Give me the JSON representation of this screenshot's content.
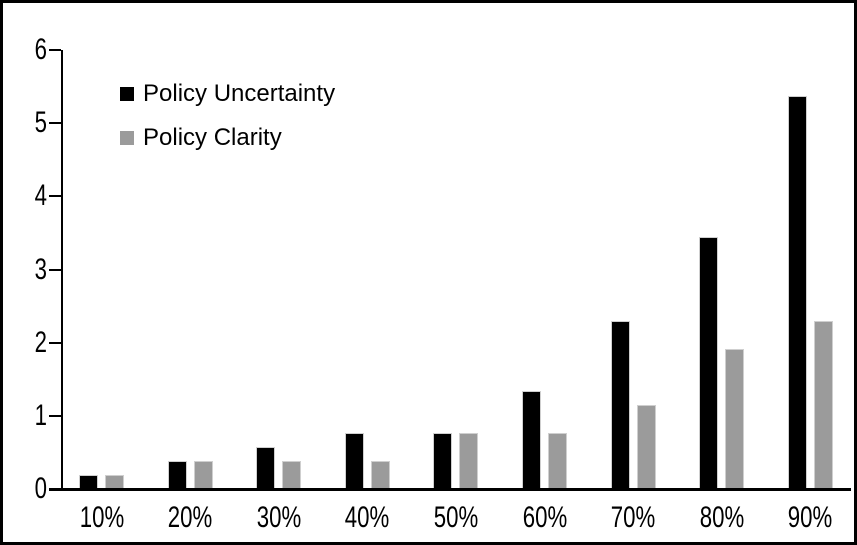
{
  "chart_data": {
    "type": "bar",
    "title": "",
    "xlabel": "",
    "ylabel": "",
    "categories": [
      "10%",
      "20%",
      "30%",
      "40%",
      "50%",
      "60%",
      "70%",
      "80%",
      "90%"
    ],
    "series": [
      {
        "name": "Policy Uncertainty",
        "color": "#000000",
        "values": [
          0.19,
          0.38,
          0.58,
          0.77,
          0.77,
          1.34,
          2.3,
          3.45,
          5.37
        ]
      },
      {
        "name": "Policy Clarity",
        "color": "#9b9b9b",
        "values": [
          0.19,
          0.38,
          0.38,
          0.38,
          0.77,
          0.77,
          1.15,
          1.92,
          2.3
        ]
      }
    ],
    "ylim": [
      0,
      6
    ],
    "yticks": [
      "0",
      "1",
      "2",
      "3",
      "4",
      "5",
      "6"
    ],
    "grid": false,
    "legend_position": "top-left-inside",
    "axis_color": "#000000",
    "background_color": "#ffffff"
  }
}
